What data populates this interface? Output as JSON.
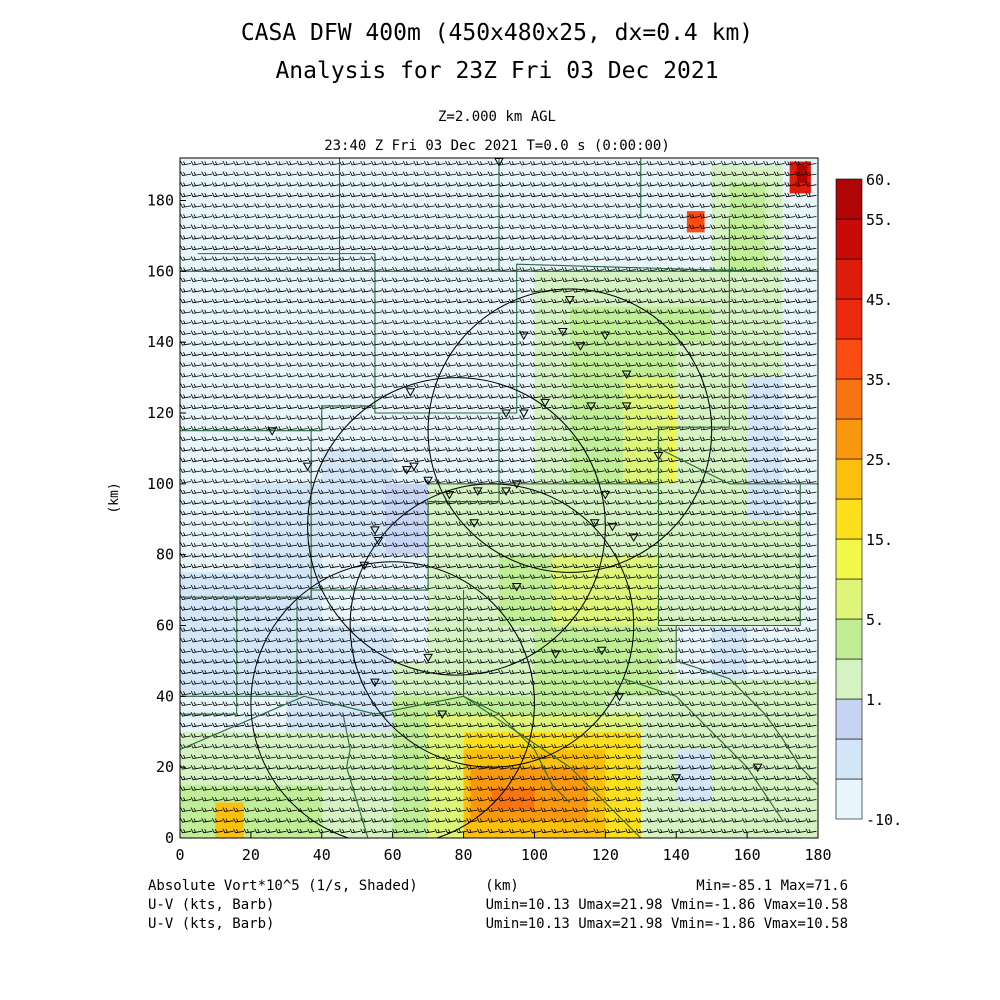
{
  "chart_data": {
    "type": "heatmap",
    "title_lines": [
      "CASA DFW 400m (450x480x25, dx=0.4 km)",
      "Analysis for 23Z Fri 03 Dec 2021"
    ],
    "level_label": "Z=2.000 km AGL",
    "time_label": "23:40 Z Fri 03 Dec 2021   T=0.0 s (0:00:00)",
    "xlabel": "(km)",
    "ylabel": "(km)",
    "xlim": [
      0,
      180
    ],
    "ylim": [
      0,
      192
    ],
    "xticks": [
      0,
      20,
      40,
      60,
      80,
      100,
      120,
      140,
      160,
      180
    ],
    "yticks": [
      0,
      20,
      40,
      60,
      80,
      100,
      120,
      140,
      160,
      180
    ],
    "colorbar": {
      "labels": [
        "60.",
        "55.",
        "45.",
        "35.",
        "25.",
        "15.",
        "5.",
        "1.",
        "-10."
      ],
      "colors": [
        "#e8f6fb",
        "#d2e6f7",
        "#c7d3f3",
        "#d5f2c3",
        "#bfee96",
        "#def57a",
        "#f2f84a",
        "#fce01e",
        "#fbc00e",
        "#f9980e",
        "#f77412",
        "#f94b12",
        "#ec2a10",
        "#dd1c0c",
        "#c90b08",
        "#b00505"
      ]
    },
    "field_cells": [
      {
        "x": [
          0,
          180
        ],
        "y": [
          0,
          192
        ],
        "level": 0
      },
      {
        "x": [
          0,
          30
        ],
        "y": [
          40,
          75
        ],
        "level": 1
      },
      {
        "x": [
          20,
          40
        ],
        "y": [
          60,
          100
        ],
        "level": 1
      },
      {
        "x": [
          40,
          60
        ],
        "y": [
          80,
          110
        ],
        "level": 1
      },
      {
        "x": [
          30,
          60
        ],
        "y": [
          20,
          60
        ],
        "level": 1
      },
      {
        "x": [
          58,
          70
        ],
        "y": [
          80,
          100
        ],
        "level": 2
      },
      {
        "x": [
          160,
          170
        ],
        "y": [
          80,
          130
        ],
        "level": 1
      },
      {
        "x": [
          150,
          160
        ],
        "y": [
          20,
          70
        ],
        "level": 1
      },
      {
        "x": [
          0,
          60
        ],
        "y": [
          0,
          30
        ],
        "level": 3
      },
      {
        "x": [
          0,
          40
        ],
        "y": [
          0,
          15
        ],
        "level": 4
      },
      {
        "x": [
          10,
          18
        ],
        "y": [
          0,
          10
        ],
        "level": 8
      },
      {
        "x": [
          60,
          140
        ],
        "y": [
          0,
          50
        ],
        "level": 3
      },
      {
        "x": [
          60,
          120
        ],
        "y": [
          0,
          40
        ],
        "level": 4
      },
      {
        "x": [
          70,
          130
        ],
        "y": [
          0,
          35
        ],
        "level": 5
      },
      {
        "x": [
          80,
          130
        ],
        "y": [
          0,
          30
        ],
        "level": 7
      },
      {
        "x": [
          80,
          120
        ],
        "y": [
          0,
          25
        ],
        "level": 8
      },
      {
        "x": [
          82,
          115
        ],
        "y": [
          5,
          20
        ],
        "level": 9
      },
      {
        "x": [
          88,
          100
        ],
        "y": [
          8,
          14
        ],
        "level": 10
      },
      {
        "x": [
          135,
          180
        ],
        "y": [
          0,
          45
        ],
        "level": 3
      },
      {
        "x": [
          145,
          175
        ],
        "y": [
          0,
          30
        ],
        "level": 3
      },
      {
        "x": [
          140,
          150
        ],
        "y": [
          10,
          25
        ],
        "level": 1
      },
      {
        "x": [
          70,
          140
        ],
        "y": [
          50,
          100
        ],
        "level": 3
      },
      {
        "x": [
          90,
          135
        ],
        "y": [
          40,
          80
        ],
        "level": 4
      },
      {
        "x": [
          105,
          135
        ],
        "y": [
          60,
          80
        ],
        "level": 5
      },
      {
        "x": [
          100,
          150
        ],
        "y": [
          100,
          160
        ],
        "level": 3
      },
      {
        "x": [
          110,
          150
        ],
        "y": [
          100,
          150
        ],
        "level": 4
      },
      {
        "x": [
          125,
          150
        ],
        "y": [
          100,
          130
        ],
        "level": 5
      },
      {
        "x": [
          138,
          150
        ],
        "y": [
          100,
          125
        ],
        "level": 6
      },
      {
        "x": [
          142,
          149
        ],
        "y": [
          108,
          120
        ],
        "level": 8
      },
      {
        "x": [
          150,
          170
        ],
        "y": [
          130,
          190
        ],
        "level": 3
      },
      {
        "x": [
          155,
          165
        ],
        "y": [
          160,
          185
        ],
        "level": 4
      },
      {
        "x": [
          140,
          160
        ],
        "y": [
          90,
          140
        ],
        "level": 3
      },
      {
        "x": [
          70,
          100
        ],
        "y": [
          40,
          60
        ],
        "level": 3
      },
      {
        "x": [
          140,
          175
        ],
        "y": [
          60,
          90
        ],
        "level": 3
      },
      {
        "x": [
          143,
          148
        ],
        "y": [
          171,
          177
        ],
        "level": 11
      },
      {
        "x": [
          172,
          178
        ],
        "y": [
          182,
          191
        ],
        "level": 13
      },
      {
        "x": [
          174,
          177
        ],
        "y": [
          185,
          190
        ],
        "level": 15
      }
    ],
    "radar_rings": [
      {
        "cx": 78,
        "cy": 88,
        "r": 42
      },
      {
        "cx": 110,
        "cy": 115,
        "r": 40
      },
      {
        "cx": 88,
        "cy": 60,
        "r": 40
      },
      {
        "cx": 60,
        "cy": 38,
        "r": 40
      }
    ],
    "stations": [
      [
        90,
        191
      ],
      [
        110,
        152
      ],
      [
        108,
        143
      ],
      [
        97,
        142
      ],
      [
        120,
        142
      ],
      [
        113,
        139
      ],
      [
        126,
        131
      ],
      [
        126,
        122
      ],
      [
        116,
        122
      ],
      [
        103,
        123
      ],
      [
        97,
        120
      ],
      [
        92,
        120
      ],
      [
        65,
        126
      ],
      [
        66,
        105
      ],
      [
        64,
        104
      ],
      [
        70,
        101
      ],
      [
        76,
        97
      ],
      [
        84,
        98
      ],
      [
        92,
        98
      ],
      [
        95,
        100
      ],
      [
        120,
        97
      ],
      [
        122,
        88
      ],
      [
        128,
        85
      ],
      [
        117,
        89
      ],
      [
        26,
        115
      ],
      [
        36,
        105
      ],
      [
        55,
        87
      ],
      [
        56,
        84
      ],
      [
        52,
        77
      ],
      [
        83,
        89
      ],
      [
        95,
        71
      ],
      [
        106,
        52
      ],
      [
        119,
        53
      ],
      [
        124,
        40
      ],
      [
        70,
        51
      ],
      [
        55,
        44
      ],
      [
        74,
        35
      ],
      [
        140,
        17
      ],
      [
        163,
        20
      ],
      [
        135,
        108
      ]
    ],
    "boundaries": [
      [
        [
          5,
          165
        ],
        [
          55,
          165
        ],
        [
          55,
          122
        ],
        [
          40,
          122
        ],
        [
          40,
          115
        ],
        [
          0,
          115
        ]
      ],
      [
        [
          55,
          122
        ],
        [
          55,
          120
        ],
        [
          95,
          120
        ],
        [
          95,
          162
        ],
        [
          165,
          160
        ]
      ],
      [
        [
          37,
          115
        ],
        [
          37,
          68
        ],
        [
          0,
          68
        ]
      ],
      [
        [
          37,
          68
        ],
        [
          37,
          70
        ],
        [
          70,
          70
        ],
        [
          70,
          95
        ],
        [
          90,
          95
        ],
        [
          90,
          120
        ]
      ],
      [
        [
          70,
          100
        ],
        [
          135,
          100
        ],
        [
          135,
          116
        ],
        [
          155,
          116
        ],
        [
          155,
          175
        ]
      ],
      [
        [
          0,
          160
        ],
        [
          180,
          160
        ]
      ],
      [
        [
          90,
          192
        ],
        [
          90,
          160
        ]
      ],
      [
        [
          45,
          192
        ],
        [
          45,
          160
        ]
      ],
      [
        [
          130,
          192
        ],
        [
          130,
          175
        ]
      ],
      [
        [
          135,
          116
        ],
        [
          135,
          110
        ],
        [
          155,
          100
        ],
        [
          180,
          100
        ]
      ],
      [
        [
          16,
          68
        ],
        [
          16,
          35
        ],
        [
          0,
          35
        ]
      ],
      [
        [
          33,
          68
        ],
        [
          33,
          40
        ],
        [
          0,
          40
        ]
      ],
      [
        [
          135,
          100
        ],
        [
          135,
          60
        ],
        [
          175,
          60
        ],
        [
          175,
          100
        ]
      ],
      [
        [
          140,
          60
        ],
        [
          140,
          50
        ]
      ],
      [
        [
          80,
          70
        ],
        [
          80,
          40
        ]
      ],
      [
        [
          80,
          40
        ],
        [
          55,
          35
        ],
        [
          35,
          40
        ],
        [
          0,
          25
        ]
      ],
      [
        [
          80,
          40
        ],
        [
          95,
          30
        ],
        [
          110,
          20
        ],
        [
          120,
          10
        ],
        [
          130,
          0
        ]
      ],
      [
        [
          80,
          40
        ],
        [
          90,
          35
        ],
        [
          100,
          25
        ],
        [
          105,
          15
        ],
        [
          110,
          10
        ]
      ],
      [
        [
          140,
          50
        ],
        [
          155,
          45
        ],
        [
          165,
          35
        ],
        [
          170,
          28
        ],
        [
          175,
          20
        ],
        [
          180,
          15
        ]
      ],
      [
        [
          125,
          45
        ],
        [
          140,
          40
        ],
        [
          150,
          30
        ],
        [
          160,
          20
        ],
        [
          170,
          5
        ]
      ],
      [
        [
          46,
          35
        ],
        [
          48,
          25
        ],
        [
          47,
          20
        ],
        [
          50,
          10
        ],
        [
          53,
          0
        ]
      ]
    ],
    "footer": {
      "left": [
        "Absolute Vort*10^5 (1/s, Shaded)",
        "U-V (kts, Barb)",
        "U-V (kts, Barb)"
      ],
      "center": "(km)",
      "right": [
        "Min=-85.1 Max=71.6",
        "Umin=10.13 Umax=21.98 Vmin=-1.86 Vmax=10.58",
        "Umin=10.13 Umax=21.98 Vmin=-1.86 Vmax=10.58"
      ]
    }
  }
}
